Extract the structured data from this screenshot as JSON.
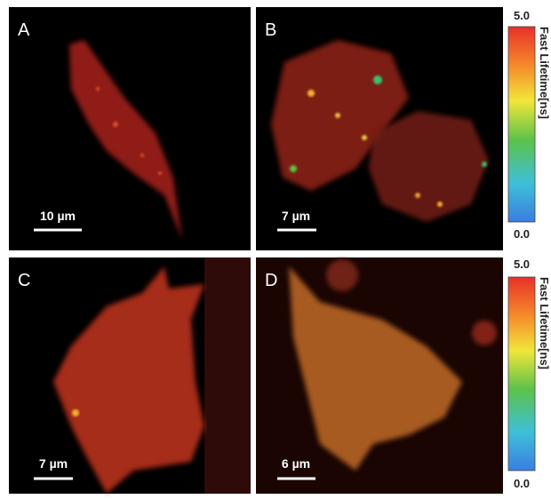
{
  "panels": [
    {
      "label": "A",
      "scale_bar": "10 µm"
    },
    {
      "label": "B",
      "scale_bar": "7 µm"
    },
    {
      "label": "C",
      "scale_bar": "7 µm"
    },
    {
      "label": "D",
      "scale_bar": "6 µm"
    }
  ],
  "colorbars": [
    {
      "max": "5.0",
      "min": "0.0",
      "title": "Fast Lifetime[ns]"
    },
    {
      "max": "5.0",
      "min": "0.0",
      "title": "Fast Lifetime[ns]"
    }
  ]
}
